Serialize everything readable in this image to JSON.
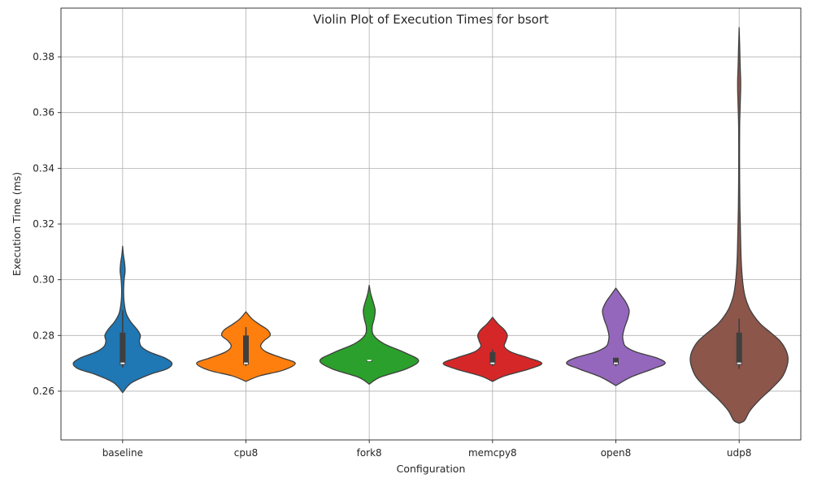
{
  "chart_data": {
    "type": "violin",
    "title": "Violin Plot of Execution Times for bsort",
    "xlabel": "Configuration",
    "ylabel": "Execution Time (ms)",
    "ylim": [
      0.2425,
      0.3975
    ],
    "yticks": [
      0.26,
      0.28,
      0.3,
      0.32,
      0.34,
      0.36,
      0.38
    ],
    "ytick_labels": [
      "0.26",
      "0.28",
      "0.30",
      "0.32",
      "0.34",
      "0.36",
      "0.38"
    ],
    "grid": true,
    "categories": [
      "baseline",
      "cpu8",
      "fork8",
      "memcpy8",
      "open8",
      "udp8"
    ],
    "series": [
      {
        "category": "baseline",
        "color": "#1f77b4",
        "min": 0.2595,
        "max": 0.312,
        "q1": 0.2695,
        "median": 0.27,
        "q3": 0.281,
        "whisker_low": 0.2685,
        "whisker_high": 0.289,
        "density": [
          [
            0.2595,
            0
          ],
          [
            0.263,
            0.18
          ],
          [
            0.266,
            0.55
          ],
          [
            0.268,
            0.9
          ],
          [
            0.27,
            1.0
          ],
          [
            0.272,
            0.85
          ],
          [
            0.274,
            0.55
          ],
          [
            0.276,
            0.38
          ],
          [
            0.278,
            0.34
          ],
          [
            0.28,
            0.36
          ],
          [
            0.282,
            0.3
          ],
          [
            0.285,
            0.16
          ],
          [
            0.288,
            0.07
          ],
          [
            0.292,
            0.03
          ],
          [
            0.296,
            0.02
          ],
          [
            0.3,
            0.03
          ],
          [
            0.303,
            0.05
          ],
          [
            0.306,
            0.04
          ],
          [
            0.309,
            0.015
          ],
          [
            0.312,
            0
          ]
        ]
      },
      {
        "category": "cpu8",
        "color": "#ff7f0e",
        "min": 0.2635,
        "max": 0.2885,
        "q1": 0.2695,
        "median": 0.27,
        "q3": 0.28,
        "whisker_low": 0.269,
        "whisker_high": 0.283,
        "density": [
          [
            0.2635,
            0
          ],
          [
            0.2655,
            0.28
          ],
          [
            0.2675,
            0.75
          ],
          [
            0.27,
            1.0
          ],
          [
            0.272,
            0.72
          ],
          [
            0.274,
            0.42
          ],
          [
            0.276,
            0.3
          ],
          [
            0.278,
            0.36
          ],
          [
            0.28,
            0.49
          ],
          [
            0.282,
            0.44
          ],
          [
            0.284,
            0.27
          ],
          [
            0.286,
            0.12
          ],
          [
            0.2885,
            0
          ]
        ]
      },
      {
        "category": "fork8",
        "color": "#2ca02c",
        "min": 0.2625,
        "max": 0.298,
        "q1": 0.271,
        "median": 0.271,
        "q3": 0.271,
        "whisker_low": 0.271,
        "whisker_high": 0.271,
        "density": [
          [
            0.2625,
            0
          ],
          [
            0.265,
            0.22
          ],
          [
            0.268,
            0.75
          ],
          [
            0.271,
            1.0
          ],
          [
            0.274,
            0.7
          ],
          [
            0.277,
            0.3
          ],
          [
            0.28,
            0.09
          ],
          [
            0.283,
            0.06
          ],
          [
            0.286,
            0.1
          ],
          [
            0.289,
            0.12
          ],
          [
            0.292,
            0.08
          ],
          [
            0.295,
            0.03
          ],
          [
            0.298,
            0
          ]
        ]
      },
      {
        "category": "memcpy8",
        "color": "#d62728",
        "min": 0.2635,
        "max": 0.2865,
        "q1": 0.2695,
        "median": 0.27,
        "q3": 0.274,
        "whisker_low": 0.269,
        "whisker_high": 0.275,
        "density": [
          [
            0.2635,
            0
          ],
          [
            0.2655,
            0.25
          ],
          [
            0.268,
            0.75
          ],
          [
            0.27,
            1.0
          ],
          [
            0.272,
            0.72
          ],
          [
            0.274,
            0.38
          ],
          [
            0.276,
            0.24
          ],
          [
            0.278,
            0.27
          ],
          [
            0.28,
            0.3
          ],
          [
            0.282,
            0.24
          ],
          [
            0.284,
            0.12
          ],
          [
            0.2865,
            0
          ]
        ]
      },
      {
        "category": "open8",
        "color": "#9467bd",
        "min": 0.262,
        "max": 0.297,
        "q1": 0.2695,
        "median": 0.27,
        "q3": 0.272,
        "whisker_low": 0.269,
        "whisker_high": 0.272,
        "density": [
          [
            0.262,
            0
          ],
          [
            0.265,
            0.3
          ],
          [
            0.268,
            0.75
          ],
          [
            0.27,
            1.0
          ],
          [
            0.272,
            0.82
          ],
          [
            0.274,
            0.42
          ],
          [
            0.276,
            0.2
          ],
          [
            0.278,
            0.15
          ],
          [
            0.28,
            0.14
          ],
          [
            0.283,
            0.18
          ],
          [
            0.286,
            0.24
          ],
          [
            0.289,
            0.27
          ],
          [
            0.292,
            0.2
          ],
          [
            0.295,
            0.08
          ],
          [
            0.297,
            0
          ]
        ]
      },
      {
        "category": "udp8",
        "color": "#8c564b",
        "min": 0.2485,
        "max": 0.3905,
        "q1": 0.2695,
        "median": 0.27,
        "q3": 0.281,
        "whisker_low": 0.268,
        "whisker_high": 0.286,
        "density": [
          [
            0.2485,
            0
          ],
          [
            0.2495,
            0.11
          ],
          [
            0.253,
            0.22
          ],
          [
            0.257,
            0.42
          ],
          [
            0.261,
            0.66
          ],
          [
            0.265,
            0.87
          ],
          [
            0.269,
            0.97
          ],
          [
            0.272,
            0.99
          ],
          [
            0.275,
            0.94
          ],
          [
            0.278,
            0.83
          ],
          [
            0.281,
            0.64
          ],
          [
            0.284,
            0.44
          ],
          [
            0.287,
            0.3
          ],
          [
            0.29,
            0.2
          ],
          [
            0.294,
            0.12
          ],
          [
            0.298,
            0.08
          ],
          [
            0.304,
            0.05
          ],
          [
            0.31,
            0.035
          ],
          [
            0.318,
            0.025
          ],
          [
            0.326,
            0.015
          ],
          [
            0.335,
            0.01
          ],
          [
            0.345,
            0.008
          ],
          [
            0.355,
            0.01
          ],
          [
            0.362,
            0.02
          ],
          [
            0.368,
            0.03
          ],
          [
            0.372,
            0.03
          ],
          [
            0.377,
            0.02
          ],
          [
            0.383,
            0.012
          ],
          [
            0.3905,
            0
          ]
        ]
      }
    ]
  }
}
